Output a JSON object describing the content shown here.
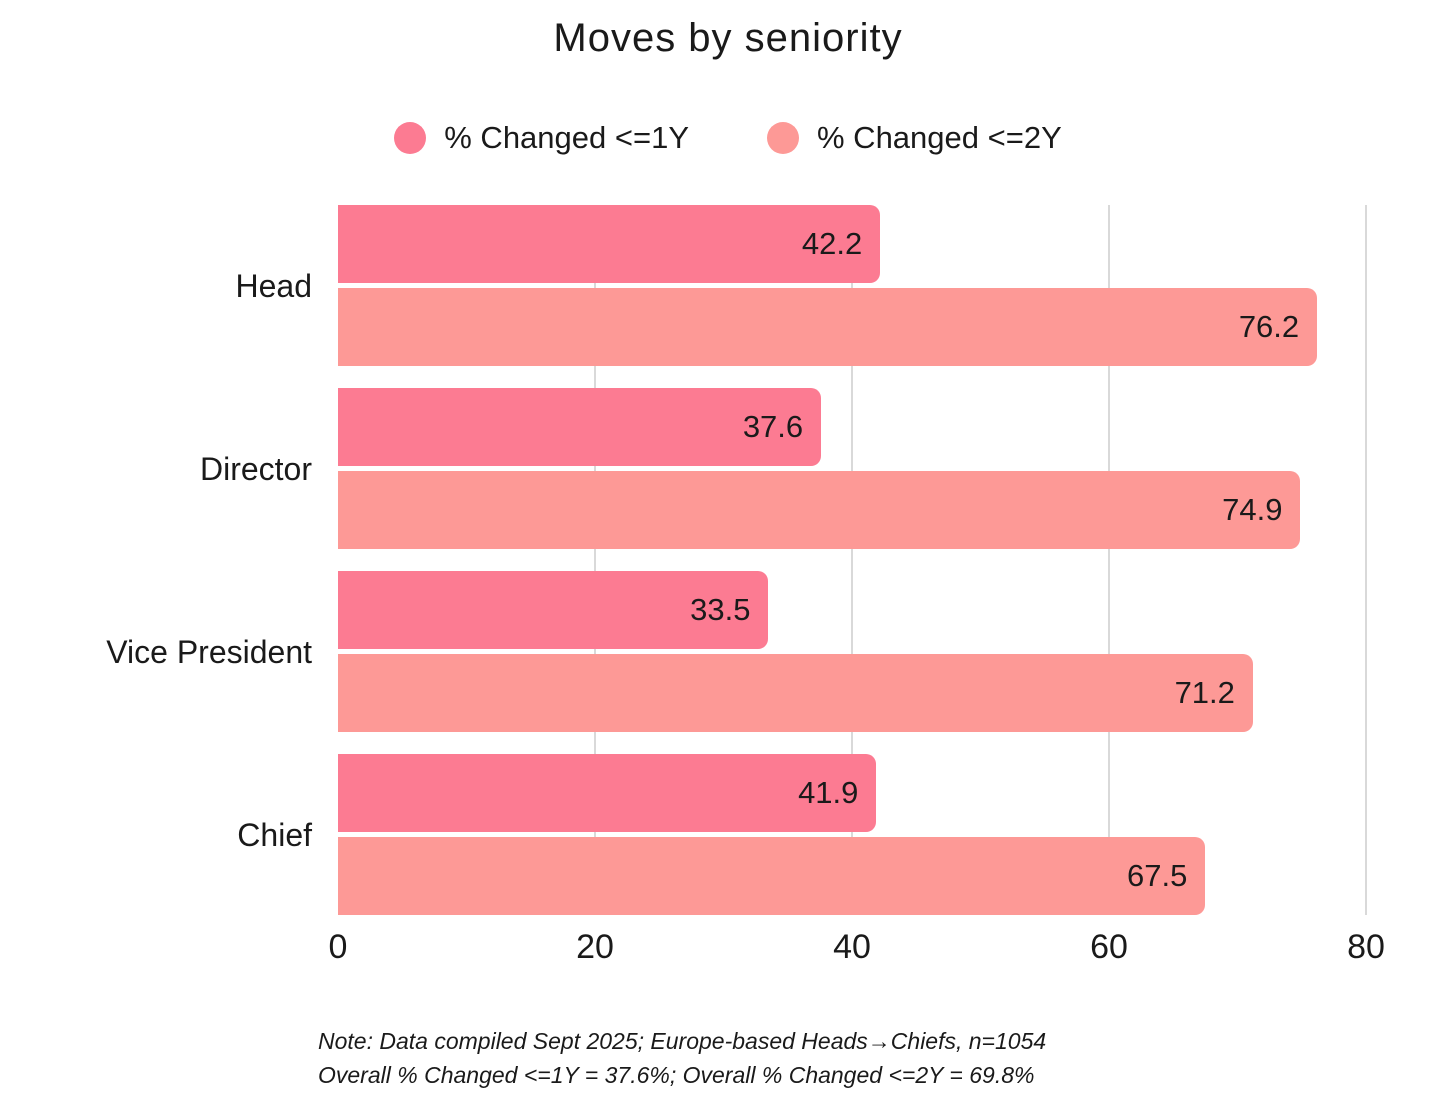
{
  "title": "Moves by seniority",
  "legend": [
    {
      "label": "% Changed <=1Y",
      "color": "#FC7B92"
    },
    {
      "label": "% Changed <=2Y",
      "color": "#FD9996"
    }
  ],
  "chart_data": {
    "type": "bar",
    "orientation": "horizontal",
    "title": "Moves by seniority",
    "categories": [
      "Head",
      "Director",
      "Vice President",
      "Chief"
    ],
    "series": [
      {
        "name": "% Changed <=1Y",
        "color": "#FC7B92",
        "values": [
          42.2,
          37.6,
          33.5,
          41.9
        ]
      },
      {
        "name": "% Changed <=2Y",
        "color": "#FD9996",
        "values": [
          76.2,
          74.9,
          71.2,
          67.5
        ]
      }
    ],
    "xlabel": "",
    "ylabel": "",
    "xlim": [
      0,
      80
    ],
    "x_ticks": [
      0,
      20,
      40,
      60,
      80
    ],
    "grid": true,
    "gridline_color": "#D9D9D9",
    "legend_position": "top",
    "value_labels": "inside-end"
  },
  "footnote": {
    "line1": "Note: Data compiled Sept 2025; Europe-based Heads→Chiefs, n=1054",
    "line2": "Overall % Changed <=1Y = 37.6%; Overall % Changed <=2Y = 69.8%"
  }
}
